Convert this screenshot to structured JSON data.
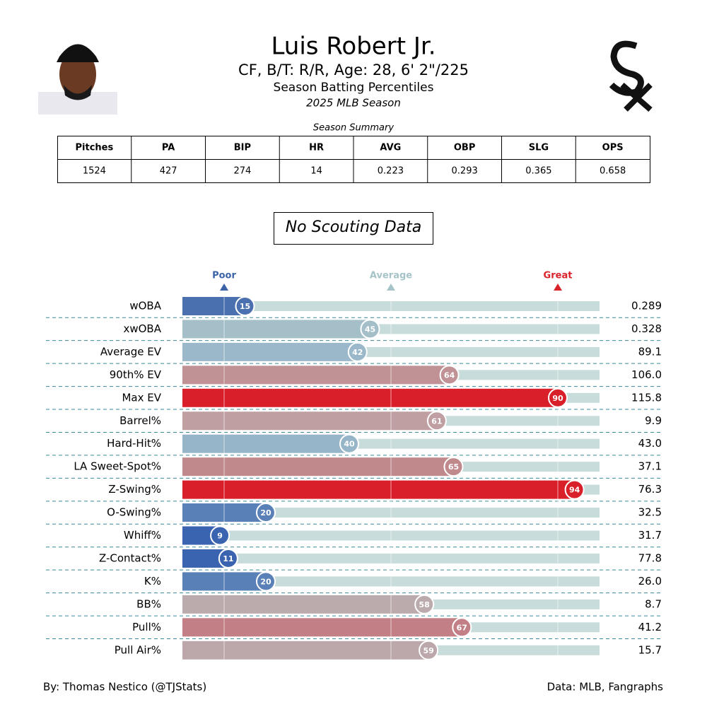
{
  "header": {
    "title": "Luis Robert Jr.",
    "subtitle": "CF, B/T: R/R, Age: 28, 6' 2\"/225",
    "caption": "Season Batting Percentiles",
    "season": "2025 MLB Season"
  },
  "summary": {
    "title": "Season Summary",
    "columns": [
      "Pitches",
      "PA",
      "BIP",
      "HR",
      "AVG",
      "OBP",
      "SLG",
      "OPS"
    ],
    "values": [
      1524,
      427,
      274,
      14,
      0.223,
      0.293,
      0.365,
      0.658
    ]
  },
  "scouting": "No Scouting Data",
  "chart_data": {
    "type": "bar",
    "orientation": "horizontal",
    "categories": [
      "wOBA",
      "xwOBA",
      "Average EV",
      "90th% EV",
      "Max EV",
      "Barrel%",
      "Hard-Hit%",
      "LA Sweet-Spot%",
      "Z-Swing%",
      "O-Swing%",
      "Whiff%",
      "Z-Contact%",
      "K%",
      "BB%",
      "Pull%",
      "Pull Air%"
    ],
    "values": [
      15,
      45,
      42,
      64,
      90,
      61,
      40,
      65,
      94,
      20,
      9,
      11,
      20,
      58,
      67,
      59
    ],
    "colors": [
      "#4a70b0",
      "#a5bfc9",
      "#9ab8c9",
      "#c09295",
      "#d9202a",
      "#bf9fa2",
      "#96b5c8",
      "#c08a8d",
      "#d9202a",
      "#5a80b8",
      "#3a63b0",
      "#3a63b0",
      "#5a80b8",
      "#bcabad",
      "#c27f85",
      "#bca7aa"
    ],
    "stats": [
      "0.289",
      "0.328",
      "89.1",
      "106.0",
      "115.8",
      "9.9",
      "43.0",
      "37.1",
      "76.3",
      "32.5",
      "31.7",
      "77.8",
      "26.0",
      "8.7",
      "41.2",
      "15.7"
    ],
    "xlim": [
      0,
      100
    ],
    "xticks": [
      {
        "value": 10,
        "label": "Poor"
      },
      {
        "value": 50,
        "label": "Average"
      },
      {
        "value": 90,
        "label": "Great"
      }
    ],
    "xtick_colors": [
      "#3a63a8",
      "#a6c4c8",
      "#d9232a"
    ],
    "track_color": "#c8dcdc"
  },
  "footer": {
    "left": "By: Thomas Nestico (@TJStats)",
    "right": "Data: MLB, Fangraphs"
  }
}
